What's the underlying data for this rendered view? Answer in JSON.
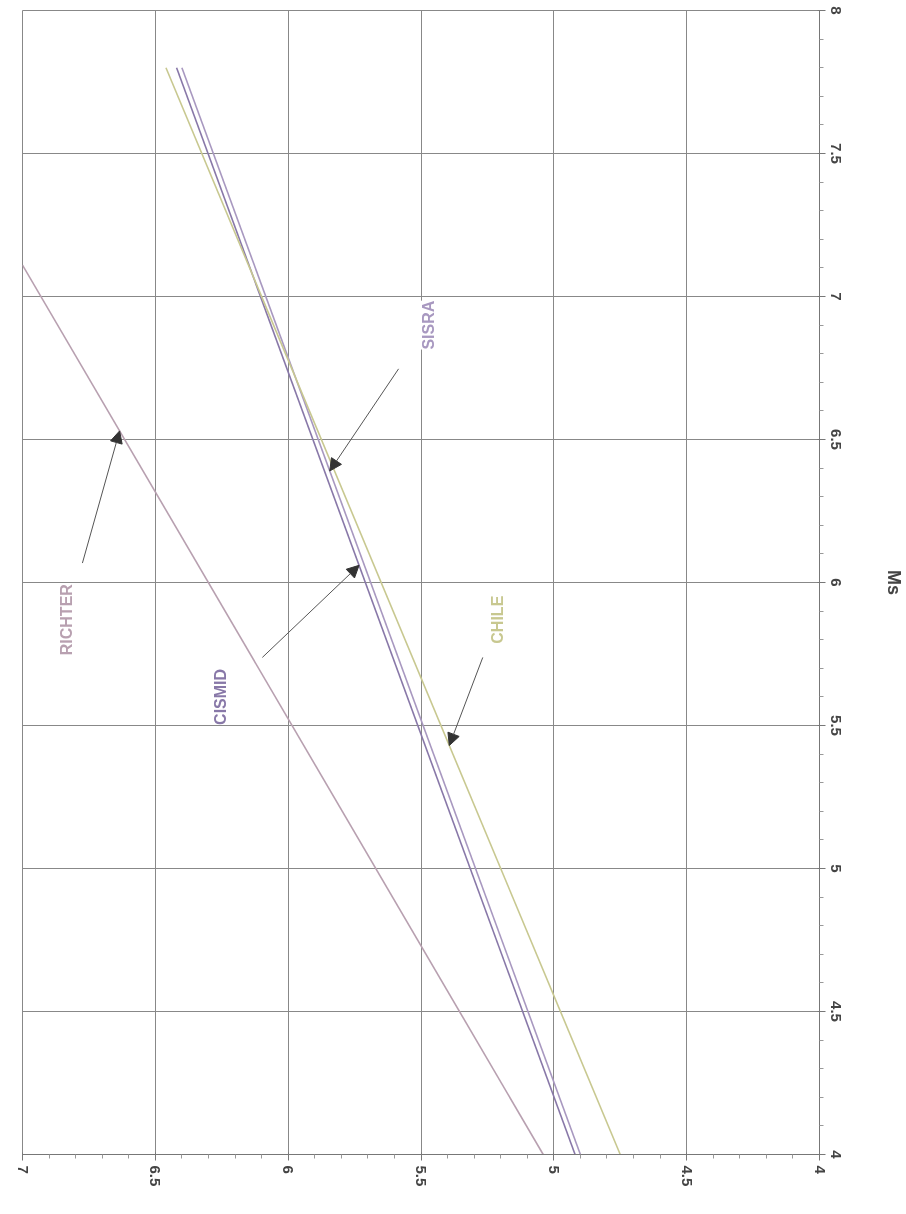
{
  "chart_data": {
    "type": "line",
    "ylabel": "Ms",
    "xlim": [
      7,
      4
    ],
    "ylim": [
      4,
      8
    ],
    "xticks": [
      7,
      6.5,
      6,
      5.5,
      5,
      4.5,
      4
    ],
    "yticks": [
      4,
      4.5,
      5,
      5.5,
      6,
      6.5,
      7,
      7.5,
      8
    ],
    "grid": true,
    "marker": "none",
    "line_style": "solid",
    "series": [
      {
        "name": "RICHTER",
        "color": "#b8a0b0",
        "x": [
          5.04,
          7
        ],
        "values": [
          4,
          7.11
        ]
      },
      {
        "name": "CISMID",
        "color": "#8878a8",
        "x": [
          4.92,
          6.42
        ],
        "values": [
          4,
          7.8
        ]
      },
      {
        "name": "SISRA",
        "color": "#a898c0",
        "x": [
          4.9,
          6.4
        ],
        "values": [
          4,
          7.8
        ]
      },
      {
        "name": "CHILE",
        "color": "#c8c890",
        "x": [
          4.75,
          6.46
        ],
        "values": [
          4,
          7.8
        ]
      }
    ]
  }
}
